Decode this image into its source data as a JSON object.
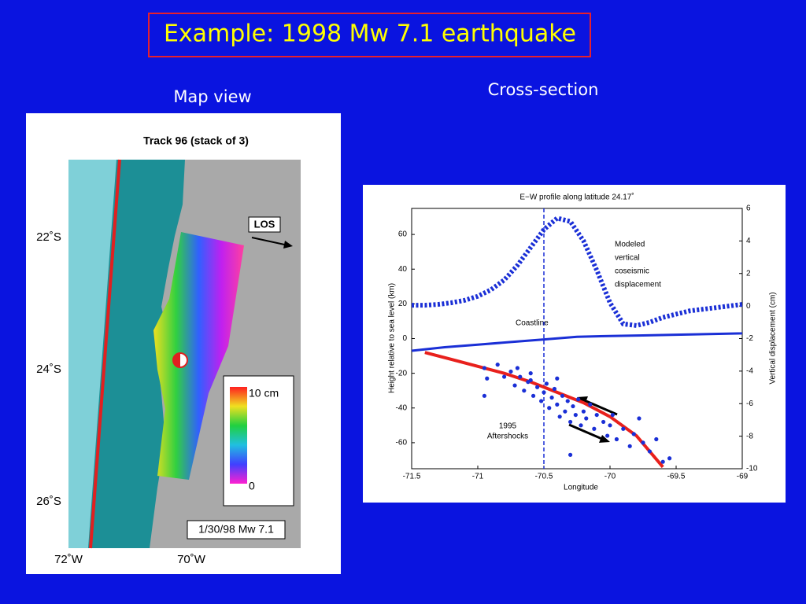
{
  "slide": {
    "title": "Example: 1998 Mw 7.1 earthquake",
    "map_label": "Map view",
    "section_label": "Cross-section"
  },
  "map": {
    "title": "Track 96 (stack of 3)",
    "los": "LOS",
    "lat_labels": [
      "22˚S",
      "24˚S",
      "26˚S"
    ],
    "lon_labels": [
      "72˚W",
      "70˚W"
    ],
    "colorbar_top": "10 cm",
    "colorbar_bottom": "0",
    "event": "1/30/98 Mw 7.1"
  },
  "chart_data": {
    "type": "line",
    "title": "E−W profile along latitude 24.17˚",
    "x_label": "Longitude",
    "y_label": "Height relative to sea level (km)",
    "y2_label": "Vertical displacement (cm)",
    "xlim": [
      -71.5,
      -69
    ],
    "xticks": [
      -71.5,
      -71,
      -70.5,
      -70,
      -69.5,
      -69
    ],
    "ylim": [
      -75,
      75
    ],
    "yticks": [
      -60,
      -40,
      -20,
      0,
      20,
      40,
      60
    ],
    "y2lim": [
      -10,
      6
    ],
    "y2ticks": [
      -10,
      -8,
      -6,
      -4,
      -2,
      0,
      2,
      4,
      6
    ],
    "marker_x": -70.5,
    "annotations": {
      "model": [
        "Modeled",
        "vertical",
        "coseismic",
        "displacement"
      ],
      "coast": "Coastline",
      "aftershocks": [
        "1995",
        "Aftershocks"
      ]
    },
    "series": [
      {
        "style": "dotted",
        "color": "#1a2fd6",
        "axis": "y2",
        "x": [
          -71.5,
          -71.4,
          -71.3,
          -71.2,
          -71.1,
          -71.0,
          -70.9,
          -70.8,
          -70.7,
          -70.6,
          -70.5,
          -70.4,
          -70.3,
          -70.2,
          -70.1,
          -70.0,
          -69.9,
          -69.8,
          -69.7,
          -69.6,
          -69.5,
          -69.4,
          -69.3,
          -69.2,
          -69.1,
          -69.0
        ],
        "values": [
          0.05,
          0.05,
          0.1,
          0.2,
          0.35,
          0.6,
          1.0,
          1.6,
          2.5,
          3.6,
          4.7,
          5.4,
          5.2,
          4.0,
          2.2,
          0.2,
          -1.1,
          -1.2,
          -1.0,
          -0.7,
          -0.5,
          -0.3,
          -0.2,
          -0.1,
          0.0,
          0.1
        ]
      },
      {
        "style": "solid",
        "color": "#1a2fd6",
        "axis": "y",
        "x": [
          -71.5,
          -71.25,
          -71.0,
          -70.75,
          -70.5,
          -70.25,
          -70.0,
          -69.75,
          -69.5,
          -69.25,
          -69.0
        ],
        "values": [
          -7,
          -5,
          -3.5,
          -2,
          -0.5,
          1,
          1.5,
          1.8,
          2.2,
          2.6,
          3
        ]
      },
      {
        "style": "slab",
        "color": "#e8201c",
        "axis": "y",
        "x": [
          -71.4,
          -71.2,
          -71.0,
          -70.8,
          -70.6,
          -70.4,
          -70.2,
          -70.0,
          -69.8,
          -69.6
        ],
        "values": [
          -8,
          -12,
          -16,
          -20,
          -25,
          -31,
          -37,
          -45,
          -56,
          -74
        ]
      },
      {
        "style": "points",
        "color": "#1a2fd6",
        "axis": "y",
        "x": [
          -70.95,
          -70.93,
          -70.85,
          -70.8,
          -70.75,
          -70.72,
          -70.7,
          -70.68,
          -70.65,
          -70.62,
          -70.6,
          -70.58,
          -70.55,
          -70.52,
          -70.5,
          -70.48,
          -70.46,
          -70.44,
          -70.42,
          -70.4,
          -70.38,
          -70.36,
          -70.34,
          -70.32,
          -70.3,
          -70.28,
          -70.26,
          -70.24,
          -70.22,
          -70.2,
          -70.18,
          -70.15,
          -70.12,
          -70.1,
          -70.05,
          -70.02,
          -70.0,
          -69.98,
          -69.95,
          -69.9,
          -69.85,
          -69.82,
          -69.78,
          -69.75,
          -69.7,
          -69.65,
          -69.6,
          -69.55,
          -70.6,
          -70.4,
          -70.3,
          -70.95
        ],
        "values": [
          -17,
          -23,
          -15,
          -22,
          -19,
          -27,
          -17,
          -22,
          -30,
          -25,
          -20,
          -33,
          -28,
          -36,
          -31,
          -26,
          -40,
          -34,
          -29,
          -38,
          -45,
          -33,
          -42,
          -36,
          -48,
          -39,
          -44,
          -35,
          -50,
          -42,
          -46,
          -38,
          -52,
          -44,
          -48,
          -56,
          -50,
          -44,
          -58,
          -52,
          -62,
          -55,
          -46,
          -60,
          -65,
          -58,
          -71,
          -69,
          -24,
          -23,
          -67,
          -33
        ]
      }
    ]
  }
}
